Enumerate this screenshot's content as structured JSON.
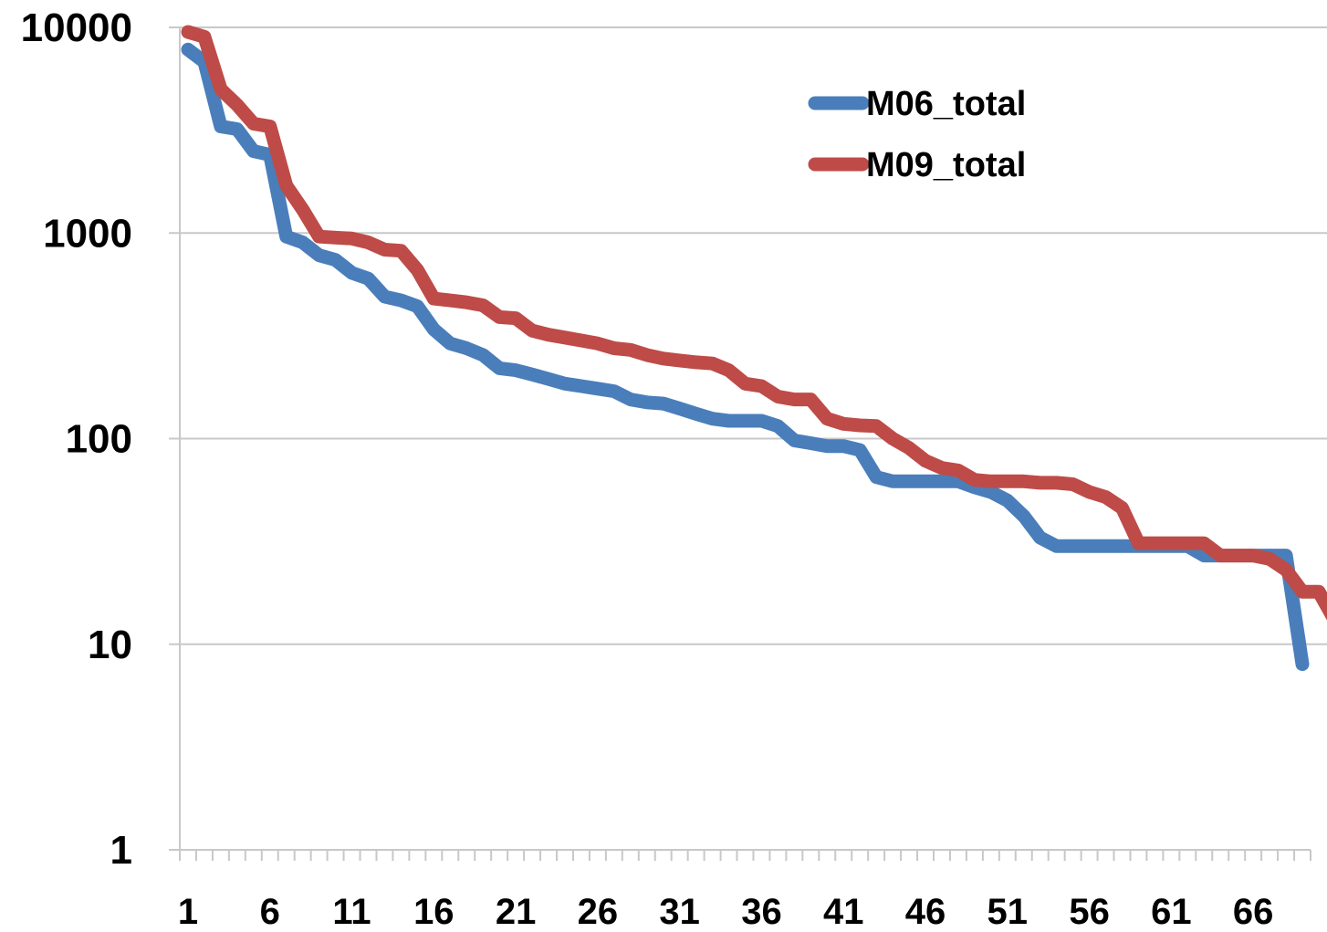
{
  "chart_data": {
    "type": "line",
    "title": "",
    "xlabel": "",
    "ylabel": "",
    "y_scale": "log",
    "ylim": [
      1,
      10000
    ],
    "y_ticks": [
      {
        "value": 1,
        "label": "1"
      },
      {
        "value": 10,
        "label": "10"
      },
      {
        "value": 100,
        "label": "100"
      },
      {
        "value": 1000,
        "label": "1000"
      },
      {
        "value": 10000,
        "label": "10000"
      }
    ],
    "x_range": [
      1,
      69
    ],
    "x_tick_labels": [
      "1",
      "6",
      "11",
      "16",
      "21",
      "26",
      "31",
      "36",
      "41",
      "46",
      "51",
      "56",
      "61",
      "66"
    ],
    "grid": "horizontal",
    "legend_position": "top-right",
    "series": [
      {
        "name": "M06_total",
        "color": "#4a7ebb",
        "values": [
          7800,
          6800,
          3300,
          3200,
          2500,
          2400,
          960,
          900,
          780,
          740,
          640,
          600,
          490,
          470,
          440,
          340,
          290,
          275,
          255,
          220,
          215,
          205,
          195,
          185,
          180,
          175,
          170,
          155,
          150,
          148,
          140,
          132,
          125,
          122,
          122,
          122,
          115,
          98,
          95,
          92,
          92,
          88,
          65,
          62,
          62,
          62,
          62,
          62,
          58,
          55,
          50,
          42,
          33,
          30,
          30,
          30,
          30,
          30,
          30,
          30,
          30,
          30,
          27,
          27,
          27,
          27,
          27,
          27,
          8
        ]
      },
      {
        "name": "M09_total",
        "color": "#be4b48",
        "values": [
          9500,
          9000,
          5000,
          4200,
          3400,
          3300,
          1700,
          1300,
          960,
          950,
          940,
          900,
          830,
          820,
          660,
          480,
          470,
          460,
          445,
          390,
          385,
          335,
          320,
          310,
          300,
          290,
          275,
          270,
          255,
          245,
          240,
          235,
          232,
          215,
          185,
          180,
          160,
          155,
          155,
          125,
          118,
          116,
          115,
          100,
          90,
          78,
          72,
          70,
          63,
          62,
          62,
          62,
          61,
          61,
          60,
          55,
          52,
          46,
          31,
          31,
          31,
          31,
          31,
          27,
          27,
          27,
          26,
          23,
          18,
          18,
          13
        ]
      }
    ]
  }
}
